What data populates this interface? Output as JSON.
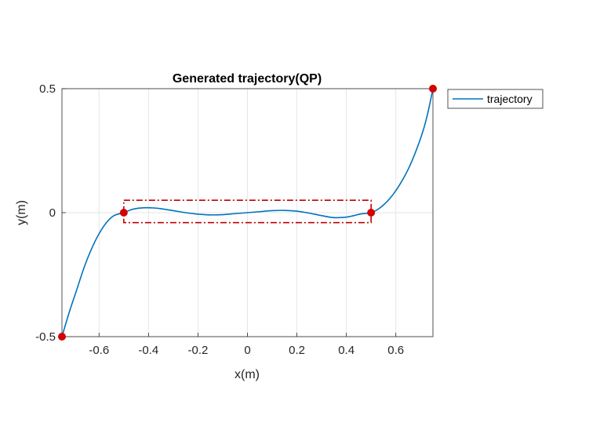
{
  "chart_data": {
    "type": "line",
    "title": "Generated trajectory(QP)",
    "xlabel": "x(m)",
    "ylabel": "y(m)",
    "xlim": [
      -0.75,
      0.75
    ],
    "ylim": [
      -0.5,
      0.5
    ],
    "xticks": [
      -0.6,
      -0.4,
      -0.2,
      0,
      0.2,
      0.4,
      0.6
    ],
    "xtick_labels": [
      "-0.6",
      "-0.4",
      "-0.2",
      "0",
      "0.2",
      "0.4",
      "0.6"
    ],
    "yticks": [
      -0.5,
      0,
      0.5
    ],
    "ytick_labels": [
      "-0.5",
      "0",
      "0.5"
    ],
    "grid": true,
    "legend": "top-right, outside plot",
    "series": [
      {
        "name": "trajectory",
        "color": "#0072BD",
        "x": [
          -0.75,
          -0.72,
          -0.69,
          -0.66,
          -0.63,
          -0.6,
          -0.57,
          -0.54,
          -0.5,
          -0.47,
          -0.44,
          -0.41,
          -0.38,
          -0.35,
          -0.3,
          -0.25,
          -0.2,
          -0.15,
          -0.1,
          -0.05,
          0,
          0.05,
          0.1,
          0.15,
          0.2,
          0.25,
          0.3,
          0.35,
          0.4,
          0.43,
          0.46,
          0.5,
          0.53,
          0.56,
          0.59,
          0.62,
          0.65,
          0.68,
          0.71,
          0.73,
          0.75
        ],
        "y": [
          -0.5,
          -0.4,
          -0.31,
          -0.22,
          -0.145,
          -0.085,
          -0.04,
          -0.012,
          0,
          0.012,
          0.018,
          0.02,
          0.019,
          0.016,
          0.008,
          0,
          -0.006,
          -0.009,
          -0.008,
          -0.004,
          0,
          0.004,
          0.008,
          0.009,
          0.006,
          -0.002,
          -0.012,
          -0.02,
          -0.018,
          -0.012,
          -0.005,
          0,
          0.015,
          0.04,
          0.075,
          0.12,
          0.175,
          0.245,
          0.33,
          0.405,
          0.5
        ]
      }
    ],
    "waypoints": {
      "color": "#D40000",
      "x": [
        -0.75,
        -0.5,
        0.5,
        0.75
      ],
      "y": [
        -0.5,
        0,
        0,
        0.5
      ]
    },
    "constraint_box": {
      "color": "#C00000",
      "style": "dash-dot",
      "x": [
        -0.5,
        0.5
      ],
      "y": [
        -0.04,
        0.05
      ]
    }
  }
}
